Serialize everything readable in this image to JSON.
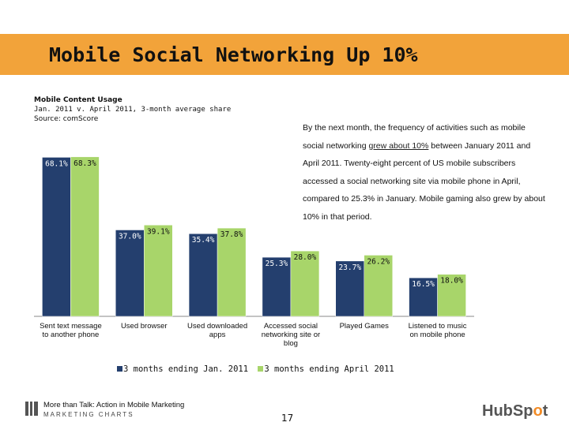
{
  "slide": {
    "title": "Mobile Social Networking Up 10%",
    "page_number": "17"
  },
  "chart_header": {
    "title": "Mobile Content Usage",
    "subtitle": "Jan. 2011 v. April 2011, 3-month average share",
    "source": "Source: comScore"
  },
  "description": {
    "pre": "By the next month, the frequency of activities such as mobile social networking ",
    "link": "grew about 10%",
    "post": " between January 2011 and April 2011. Twenty-eight percent of US mobile subscribers accessed a social networking site via mobile phone in April, compared to 25.3% in January. Mobile gaming also grew  by about 10% in that period."
  },
  "footer": {
    "line1": "More than Talk: Action in Mobile Marketing",
    "line2": "MARKETING CHARTS",
    "logo_left": "HubSp",
    "logo_o": "o",
    "logo_right": "t"
  },
  "colors": {
    "series1": "#243f6e",
    "series2": "#a8d56a",
    "accent": "#f2a33a"
  },
  "chart_data": {
    "type": "bar",
    "categories": [
      "Sent text message to another phone",
      "Used browser",
      "Used downloaded apps",
      "Accessed social networking site or blog",
      "Played Games",
      "Listened to music on mobile phone"
    ],
    "series": [
      {
        "name": "3 months ending Jan. 2011",
        "values": [
          68.1,
          37.0,
          35.4,
          25.3,
          23.7,
          16.5
        ],
        "labels": [
          "68.1%",
          "37.0%",
          "35.4%",
          "25.3%",
          "23.7%",
          "16.5%"
        ]
      },
      {
        "name": "3 months ending April 2011",
        "values": [
          68.3,
          39.1,
          37.8,
          28.0,
          26.2,
          18.0
        ],
        "labels": [
          "68.3%",
          "39.1%",
          "37.8%",
          "28.0%",
          "26.2%",
          "18.0%"
        ]
      }
    ],
    "ylim": [
      0,
      70
    ],
    "legend": "bottom",
    "grid": false
  }
}
